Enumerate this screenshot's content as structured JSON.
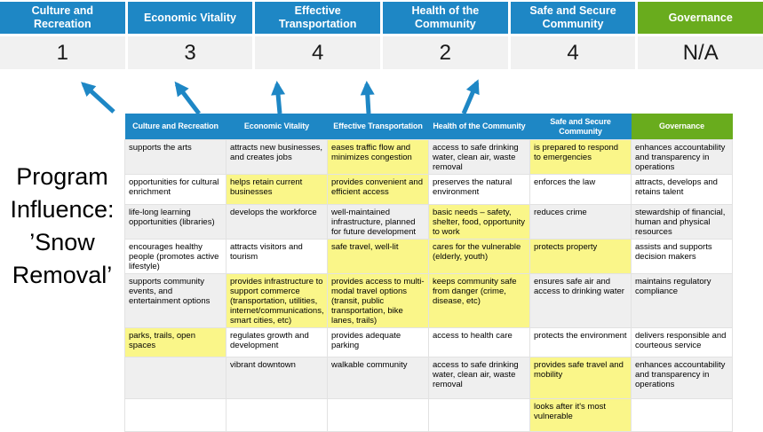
{
  "colors": {
    "blue": "#1E87C5",
    "green": "#69AC1D",
    "row_gray": "#EFEFEF",
    "highlight_yellow": "#FAF689",
    "score_bg": "#F1F1F1"
  },
  "program_title": "Program Influence: ’Snow Removal’",
  "summary": {
    "columns": [
      {
        "label": "Culture and Recreation",
        "score": "1",
        "theme": "blue"
      },
      {
        "label": "Economic Vitality",
        "score": "3",
        "theme": "blue"
      },
      {
        "label": "Effective Transportation",
        "score": "4",
        "theme": "blue"
      },
      {
        "label": "Health of the Community",
        "score": "2",
        "theme": "blue"
      },
      {
        "label": "Safe and Secure Community",
        "score": "4",
        "theme": "blue"
      },
      {
        "label": "Governance",
        "score": "N/A",
        "theme": "green"
      }
    ]
  },
  "matrix": {
    "headers": [
      {
        "label": "Culture and Recreation",
        "theme": "blue"
      },
      {
        "label": "Economic Vitality",
        "theme": "blue"
      },
      {
        "label": "Effective Transportation",
        "theme": "blue"
      },
      {
        "label": "Health of the Community",
        "theme": "blue"
      },
      {
        "label": "Safe and Secure Community",
        "theme": "blue"
      },
      {
        "label": "Governance",
        "theme": "green"
      }
    ],
    "rows": [
      {
        "cells": [
          {
            "text": "supports the arts",
            "highlight": false
          },
          {
            "text": "attracts new businesses, and creates jobs",
            "highlight": false
          },
          {
            "text": "eases traffic flow and minimizes congestion",
            "highlight": true
          },
          {
            "text": "access to safe drinking water, clean air, waste removal",
            "highlight": false
          },
          {
            "text": "is prepared to respond to emergencies",
            "highlight": true
          },
          {
            "text": "enhances accountability and transparency in operations",
            "highlight": false
          }
        ]
      },
      {
        "cells": [
          {
            "text": "opportunities for cultural enrichment",
            "highlight": false
          },
          {
            "text": "helps retain current businesses",
            "highlight": true
          },
          {
            "text": "provides convenient and efficient access",
            "highlight": true
          },
          {
            "text": "preserves the natural environment",
            "highlight": false
          },
          {
            "text": "enforces the law",
            "highlight": false
          },
          {
            "text": "attracts, develops and retains talent",
            "highlight": false
          }
        ]
      },
      {
        "cells": [
          {
            "text": "life-long learning opportunities (libraries)",
            "highlight": false
          },
          {
            "text": "develops the workforce",
            "highlight": false
          },
          {
            "text": "well-maintained infrastructure, planned for future development",
            "highlight": false
          },
          {
            "text": "basic needs – safety, shelter, food, opportunity to work",
            "highlight": true
          },
          {
            "text": "reduces crime",
            "highlight": false
          },
          {
            "text": "stewardship of financial, human and physical resources",
            "highlight": false
          }
        ]
      },
      {
        "cells": [
          {
            "text": "encourages healthy people (promotes active lifestyle)",
            "highlight": false
          },
          {
            "text": "attracts visitors and tourism",
            "highlight": false
          },
          {
            "text": "safe travel, well-lit",
            "highlight": true
          },
          {
            "text": "cares for the vulnerable (elderly, youth)",
            "highlight": true
          },
          {
            "text": "protects property",
            "highlight": true
          },
          {
            "text": "assists and supports decision makers",
            "highlight": false
          }
        ]
      },
      {
        "cells": [
          {
            "text": "supports community events, and entertainment options",
            "highlight": false
          },
          {
            "text": "provides infrastructure to support commerce (transportation, utilities, internet/communications, smart cities, etc)",
            "highlight": true
          },
          {
            "text": "provides access to multi-modal travel options (transit, public transportation, bike lanes, trails)",
            "highlight": true
          },
          {
            "text": "keeps community safe from danger (crime, disease, etc)",
            "highlight": true
          },
          {
            "text": "ensures safe air and access to drinking water",
            "highlight": false
          },
          {
            "text": "maintains regulatory compliance",
            "highlight": false
          }
        ]
      },
      {
        "cells": [
          {
            "text": "parks, trails, open spaces",
            "highlight": true
          },
          {
            "text": "regulates growth and development",
            "highlight": false
          },
          {
            "text": "provides adequate parking",
            "highlight": false
          },
          {
            "text": "access to health care",
            "highlight": false
          },
          {
            "text": "protects the environment",
            "highlight": false
          },
          {
            "text": "delivers responsible and courteous service",
            "highlight": false
          }
        ]
      },
      {
        "cells": [
          {
            "text": "",
            "highlight": false
          },
          {
            "text": "vibrant downtown",
            "highlight": false
          },
          {
            "text": "walkable community",
            "highlight": false
          },
          {
            "text": "access to safe drinking water, clean air, waste removal",
            "highlight": false
          },
          {
            "text": "provides safe travel and mobility",
            "highlight": true
          },
          {
            "text": "enhances accountability and transparency in operations",
            "highlight": false
          }
        ]
      },
      {
        "cells": [
          {
            "text": "",
            "highlight": false
          },
          {
            "text": "",
            "highlight": false
          },
          {
            "text": "",
            "highlight": false
          },
          {
            "text": "",
            "highlight": false
          },
          {
            "text": "looks after it's most vulnerable",
            "highlight": true
          },
          {
            "text": "",
            "highlight": false
          }
        ]
      }
    ]
  }
}
